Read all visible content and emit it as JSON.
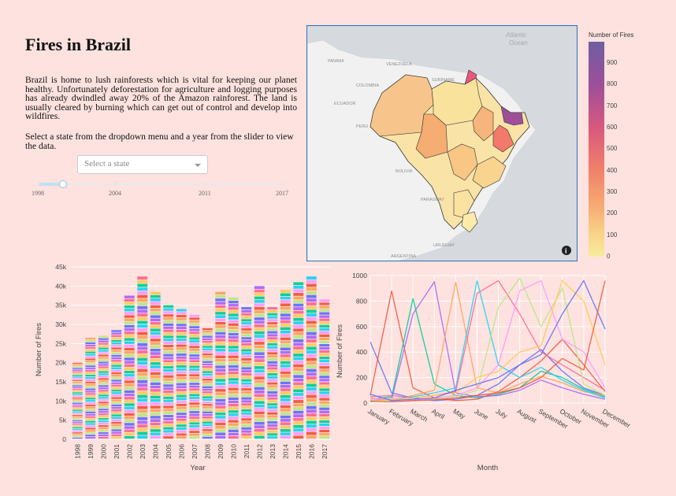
{
  "title": "Fires in Brazil",
  "intro": "Brazil is home to lush rainforests which is vital for keeping our planet healthy. Unfortunately deforestation for agriculture and logging purposes has already dwindled away 20% of the Amazon rainforest. The land is usually cleared by burning which can get out of control and develop into wildfires.",
  "instructions": "Select a state from the dropdown menu and a year from the slider to view the data.",
  "dropdown": {
    "placeholder": "Select a state",
    "selected": ""
  },
  "slider": {
    "min": 1998,
    "max": 2017,
    "value": 2000,
    "marks": [
      "1998",
      "2004",
      "2011",
      "2017"
    ]
  },
  "map": {
    "labels": {
      "ocean": [
        "Atlantic",
        "Ocean"
      ],
      "venezuela": "VENEZUELA",
      "colombia": "COLOMBIA",
      "ecuador": "ECUADOR",
      "peru": "PERU",
      "bolivia": "BOLIVIA",
      "paraguay": "PARAGUAY",
      "uruguay": "URUGUAY",
      "argentina": "ARGENTINA",
      "suriname": "SURINAME",
      "panama": "PANAMA"
    },
    "colorbar": {
      "title": "Number of Fires",
      "ticks": [
        "900",
        "800",
        "700",
        "600",
        "500",
        "400",
        "300",
        "200",
        "100",
        "0"
      ]
    }
  },
  "bar_chart": {
    "ylabel": "Number of Fires",
    "xlabel": "Year",
    "yticks": [
      "0",
      "5k",
      "10k",
      "15k",
      "20k",
      "25k",
      "30k",
      "35k",
      "40k",
      "45k"
    ],
    "years": [
      "1998",
      "1999",
      "2000",
      "2001",
      "2002",
      "2003",
      "2004",
      "2005",
      "2006",
      "2007",
      "2008",
      "2009",
      "2010",
      "2011",
      "2012",
      "2013",
      "2014",
      "2015",
      "2016",
      "2017"
    ]
  },
  "line_chart": {
    "ylabel": "Number of Fires",
    "xlabel": "Month",
    "yticks": [
      "0",
      "200",
      "400",
      "600",
      "800",
      "1000"
    ],
    "months": [
      "January",
      "February",
      "March",
      "April",
      "May",
      "June",
      "July",
      "August",
      "September",
      "October",
      "November",
      "December"
    ]
  },
  "chart_data": [
    {
      "type": "bar",
      "stacked": true,
      "xlabel": "Year",
      "ylabel": "Number of Fires",
      "categories": [
        "1998",
        "1999",
        "2000",
        "2001",
        "2002",
        "2003",
        "2004",
        "2005",
        "2006",
        "2007",
        "2008",
        "2009",
        "2010",
        "2011",
        "2012",
        "2013",
        "2014",
        "2015",
        "2016",
        "2017"
      ],
      "values": [
        20000,
        26500,
        27000,
        28500,
        37500,
        42500,
        38500,
        35000,
        34000,
        32500,
        29000,
        38500,
        37000,
        34500,
        40000,
        34500,
        39000,
        41000,
        42500,
        36500
      ],
      "ylim": [
        0,
        45000
      ],
      "grid": true
    },
    {
      "type": "line",
      "xlabel": "Month",
      "ylabel": "Number of Fires",
      "x": [
        "January",
        "February",
        "March",
        "April",
        "May",
        "June",
        "July",
        "August",
        "September",
        "October",
        "November",
        "December"
      ],
      "ylim": [
        0,
        1000
      ],
      "series": [
        {
          "values": [
            480,
            80,
            40,
            20,
            30,
            60,
            150,
            300,
            420,
            250,
            120,
            60
          ]
        },
        {
          "values": [
            60,
            880,
            120,
            40,
            20,
            30,
            90,
            200,
            330,
            500,
            300,
            90
          ]
        },
        {
          "values": [
            30,
            50,
            820,
            150,
            60,
            40,
            70,
            120,
            250,
            200,
            110,
            50
          ]
        },
        {
          "values": [
            20,
            30,
            700,
            950,
            80,
            50,
            60,
            100,
            180,
            120,
            70,
            30
          ]
        },
        {
          "values": [
            40,
            20,
            60,
            100,
            950,
            120,
            80,
            150,
            210,
            160,
            90,
            60
          ]
        },
        {
          "values": [
            10,
            30,
            50,
            80,
            120,
            960,
            300,
            200,
            280,
            180,
            100,
            40
          ]
        },
        {
          "values": [
            50,
            60,
            40,
            60,
            90,
            860,
            960,
            700,
            400,
            300,
            200,
            100
          ]
        },
        {
          "values": [
            20,
            20,
            30,
            30,
            50,
            100,
            750,
            980,
            600,
            900,
            150,
            60
          ]
        },
        {
          "values": [
            30,
            40,
            20,
            40,
            60,
            120,
            300,
            880,
            960,
            500,
            400,
            120
          ]
        },
        {
          "values": [
            10,
            30,
            40,
            60,
            80,
            200,
            250,
            400,
            450,
            960,
            800,
            300
          ]
        },
        {
          "values": [
            70,
            20,
            30,
            40,
            100,
            150,
            200,
            300,
            380,
            700,
            960,
            580
          ]
        },
        {
          "values": [
            15,
            10,
            20,
            25,
            40,
            60,
            80,
            120,
            200,
            350,
            260,
            960
          ]
        }
      ]
    }
  ]
}
